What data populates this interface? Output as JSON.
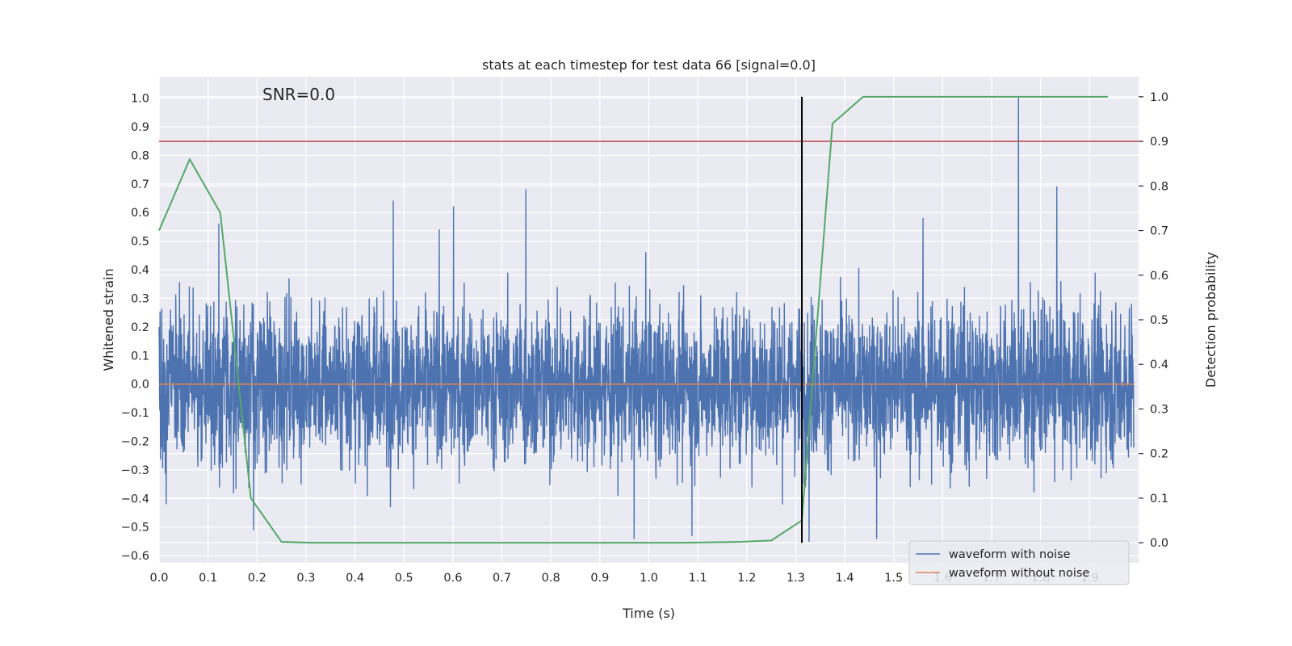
{
  "chart_data": {
    "type": "line",
    "title": "stats at each timestep for test data 66 [signal=0.0]",
    "xlabel": "Time (s)",
    "ylabel": "Whitened strain",
    "ylabel_right": "Detection probability",
    "annotation": "SNR=0.0",
    "xlim": [
      0.0,
      2.0
    ],
    "ylim": [
      -0.625,
      1.075
    ],
    "ylim_right": [
      -0.045,
      1.045
    ],
    "xticks": [
      "0.0",
      "0.1",
      "0.2",
      "0.3",
      "0.4",
      "0.5",
      "0.6",
      "0.7",
      "0.8",
      "0.9",
      "1.0",
      "1.1",
      "1.2",
      "1.3",
      "1.4",
      "1.5",
      "1.6",
      "1.7",
      "1.8",
      "1.9"
    ],
    "yticks": [
      "−0.6",
      "−0.5",
      "−0.4",
      "−0.3",
      "−0.2",
      "−0.1",
      "0.0",
      "0.1",
      "0.2",
      "0.3",
      "0.4",
      "0.5",
      "0.6",
      "0.7",
      "0.8",
      "0.9",
      "1.0"
    ],
    "yticks_right": [
      "0.0",
      "0.1",
      "0.2",
      "0.3",
      "0.4",
      "0.5",
      "0.6",
      "0.7",
      "0.8",
      "0.9",
      "1.0"
    ],
    "grid": true,
    "legend_position": "lower-right",
    "colors": {
      "noisy": "#4c72b0",
      "clean": "#dd8452",
      "probability": "#55a868",
      "threshold": "#c44e52",
      "marker": "#000000",
      "plot_bg": "#eaeaf2",
      "grid": "#ffffff"
    },
    "series": [
      {
        "name": "waveform with noise",
        "noise_summary": {
          "n_samples": 4096,
          "x_range": [
            0.0,
            1.99
          ],
          "min": -0.55,
          "max": 1.0
        },
        "peaks": [
          {
            "x": 0.122,
            "y": 0.56
          },
          {
            "x": 0.193,
            "y": -0.51
          },
          {
            "x": 0.478,
            "y": 0.64
          },
          {
            "x": 0.572,
            "y": 0.54
          },
          {
            "x": 0.601,
            "y": 0.62
          },
          {
            "x": 0.749,
            "y": 0.68
          },
          {
            "x": 0.97,
            "y": -0.54
          },
          {
            "x": 1.088,
            "y": -0.53
          },
          {
            "x": 1.327,
            "y": -0.55
          },
          {
            "x": 1.465,
            "y": -0.54
          },
          {
            "x": 1.56,
            "y": 0.58
          },
          {
            "x": 1.755,
            "y": 1.0
          },
          {
            "x": 1.833,
            "y": 0.69
          }
        ]
      },
      {
        "name": "waveform without noise",
        "x": [
          0.0,
          1.99
        ],
        "values": [
          0.0,
          0.0
        ]
      },
      {
        "axis": "right",
        "x": [
          0.0,
          0.0625,
          0.125,
          0.1875,
          0.25,
          0.3125,
          0.375,
          0.4375,
          0.5,
          0.5625,
          0.625,
          0.6875,
          0.75,
          0.8125,
          0.875,
          0.9375,
          1.0,
          1.0625,
          1.125,
          1.1875,
          1.25,
          1.3125,
          1.375,
          1.4375,
          1.5,
          1.5625,
          1.625,
          1.6875,
          1.75,
          1.8125,
          1.875,
          1.9375
        ],
        "values": [
          0.7,
          0.86,
          0.74,
          0.1,
          0.002,
          0.0,
          0.0,
          0.0,
          0.0,
          0.0,
          0.0,
          0.0,
          0.0,
          0.0,
          0.0,
          0.0,
          0.0,
          0.0,
          0.001,
          0.002,
          0.005,
          0.05,
          0.94,
          1.0,
          1.0,
          1.0,
          1.0,
          1.0,
          1.0,
          1.0,
          1.0,
          1.0
        ]
      }
    ],
    "threshold_right": 0.9,
    "marker_x": 1.3125,
    "marker_y_range": [
      0.0,
      1.0
    ]
  }
}
